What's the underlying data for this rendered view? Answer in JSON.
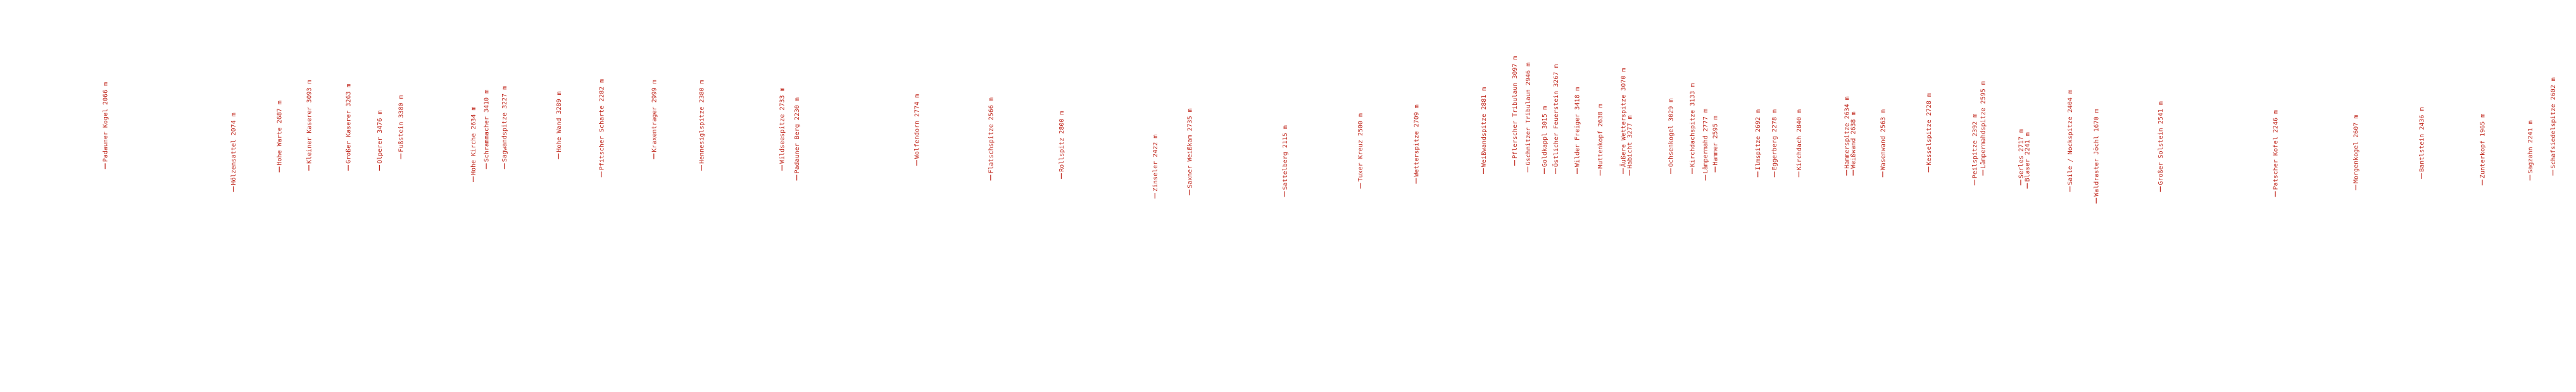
{
  "peaks": [
    {
      "label": "Padauner Kogel 2066 m"
    },
    {
      "label": "Hölzensattel 2074 m"
    },
    {
      "label": "Hohe Warte 2687 m"
    },
    {
      "label": "Kleiner Kaserer 3093 m"
    },
    {
      "label": "Großer Kaserer 3263 m"
    },
    {
      "label": "Olperer 3476 m"
    },
    {
      "label": "Fußstein 3380 m"
    },
    {
      "label": "Hohe Kirche 2634 m"
    },
    {
      "label": "Schrammacher 3410 m"
    },
    {
      "label": "Sagwandspitze 3227 m"
    },
    {
      "label": "Hohe Wand 3289 m"
    },
    {
      "label": "Pfitscher Scharte 2282 m"
    },
    {
      "label": "Kraxentrager 2999 m"
    },
    {
      "label": "Hennesiglspitze 2380 m"
    },
    {
      "label": "Wildseespitze 2733 m"
    },
    {
      "label": "Padauner Berg 2230 m"
    },
    {
      "label": "Wolfendorn 2774 m"
    },
    {
      "label": "Flatschspitze 2566 m"
    },
    {
      "label": "Rollspitz 2800 m"
    },
    {
      "label": "Zinseler 2422 m"
    },
    {
      "label": "Saxner Weißkam 2735 m"
    },
    {
      "label": "Sattelberg 2115 m"
    },
    {
      "label": "Tuxer Kreuz 2500 m"
    },
    {
      "label": "Wetterspitze 2709 m"
    },
    {
      "label": "Weißwandspitze 2881 m"
    },
    {
      "label": "Pflerscher Tribulaun 3097 m"
    },
    {
      "label": "Gschnitzer Tribulaun 2946 m"
    },
    {
      "label": "Goldkappl 3015 m"
    },
    {
      "label": "Östlicher Feuerstein 3267 m"
    },
    {
      "label": "Wilder Freiger 3418 m"
    },
    {
      "label": "Muttenkopf 2638 m"
    },
    {
      "label": "Äußere Wetterspitze 3070 m"
    },
    {
      "label": "Habicht 3277 m"
    },
    {
      "label": "Ochsenkogel 3029 m"
    },
    {
      "label": "Kirchdachspitze 3133 m"
    },
    {
      "label": "Lämpermahd 2777 m"
    },
    {
      "label": "Hammer 2595 m"
    },
    {
      "label": "Ilmspitze 2692 m"
    },
    {
      "label": "Eggerberg 2278 m"
    },
    {
      "label": "Kirchdach 2840 m"
    },
    {
      "label": "Hammerspitze 2634 m"
    },
    {
      "label": "Weißwand 2638 m"
    },
    {
      "label": "Wasenwand 2563 m"
    },
    {
      "label": "Kesselspitze 2728 m"
    },
    {
      "label": "Peilspitze 2392 m"
    },
    {
      "label": "Lämpermahdspitze 2595 m"
    },
    {
      "label": "Serles 2717 m"
    },
    {
      "label": "Blaser 2241 m"
    },
    {
      "label": "Saile / Nockspitze 2404 m"
    },
    {
      "label": "Waldraster Jöchl 1670 m"
    },
    {
      "label": "Großer Solstein 2541 m"
    },
    {
      "label": "Patscher Kofel 2246 m"
    },
    {
      "label": "Morgenkogel 2607 m"
    },
    {
      "label": "Bantlstein 2436 m"
    },
    {
      "label": "Zunterkopf 1965 m"
    },
    {
      "label": "Sagzahn 2241 m"
    },
    {
      "label": "Schafsiedelspitze 2602 m"
    }
  ]
}
